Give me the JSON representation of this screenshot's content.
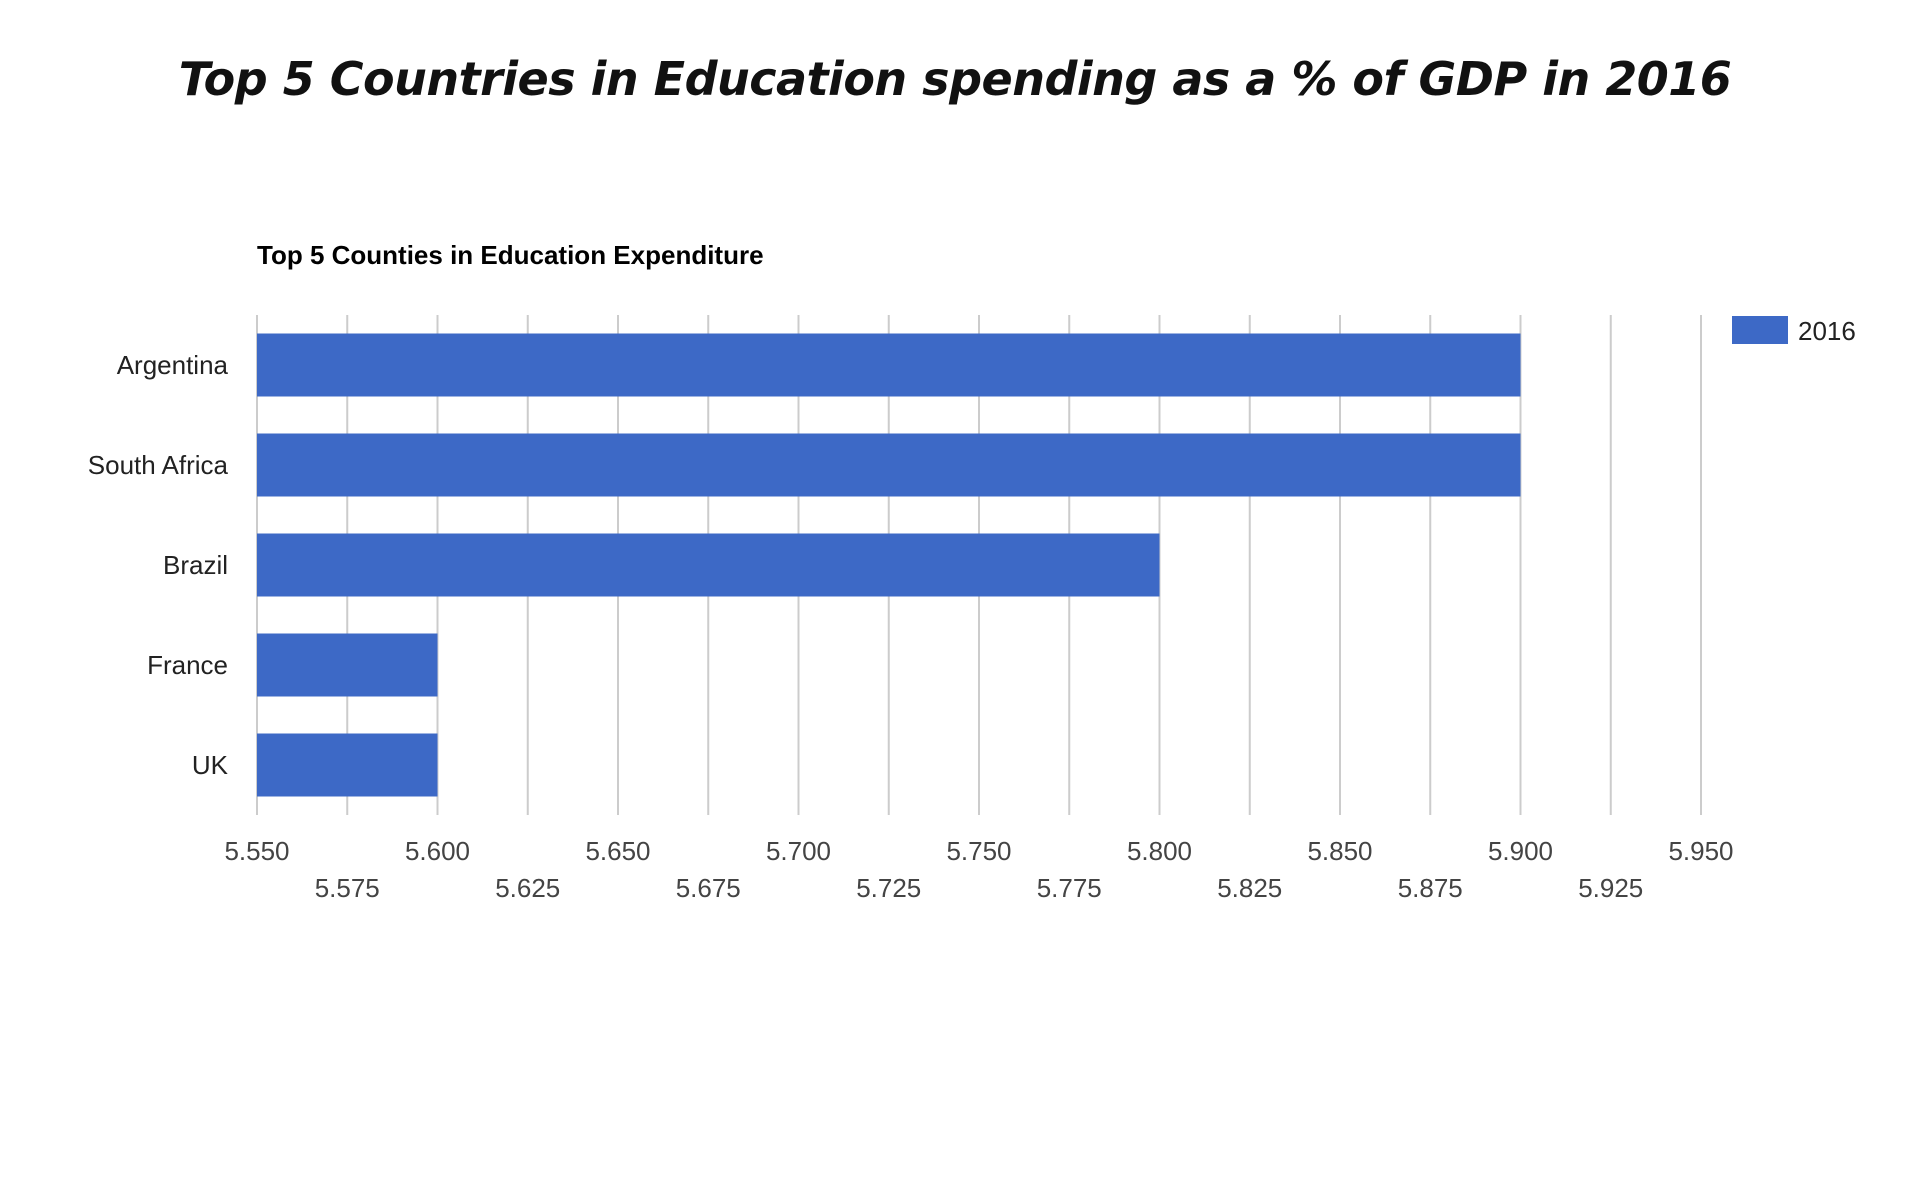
{
  "page": {
    "title": "Top 5 Countries in Education spending as a % of GDP in 2016"
  },
  "chart_data": {
    "type": "bar",
    "orientation": "horizontal",
    "title": "Top 5 Counties in Education Expenditure",
    "categories": [
      "Argentina",
      "South Africa",
      "Brazil",
      "France",
      "UK"
    ],
    "series": [
      {
        "name": "2016",
        "values": [
          5.9,
          5.9,
          5.8,
          5.6,
          5.6
        ],
        "color": "#3d69c6"
      }
    ],
    "xlim": [
      5.55,
      5.95
    ],
    "x_ticks": [
      "5.550",
      "5.575",
      "5.600",
      "5.625",
      "5.650",
      "5.675",
      "5.700",
      "5.725",
      "5.750",
      "5.775",
      "5.800",
      "5.825",
      "5.850",
      "5.875",
      "5.900",
      "5.925",
      "5.950"
    ],
    "grid": true,
    "legend_position": "top-right",
    "xlabel": "",
    "ylabel": ""
  }
}
